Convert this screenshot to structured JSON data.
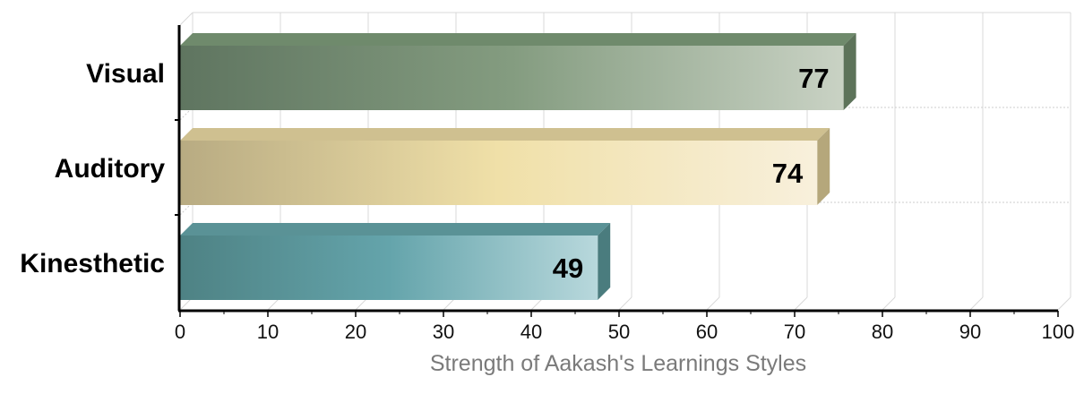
{
  "chart_data": {
    "type": "bar",
    "orientation": "horizontal",
    "categories": [
      "Visual",
      "Auditory",
      "Kinesthetic"
    ],
    "values": [
      77,
      74,
      49
    ],
    "value_labels": [
      "77",
      "74",
      "49"
    ],
    "xlabel": "Strength of Aakash's Learnings Styles",
    "ylabel": "",
    "xlim": [
      0,
      100
    ],
    "x_ticks": [
      "0",
      "10",
      "20",
      "30",
      "40",
      "50",
      "60",
      "70",
      "80",
      "90",
      "100"
    ],
    "grid": true,
    "legend": "none",
    "colors": [
      {
        "dark": "#5f7560",
        "mid": "#849c80",
        "light": "#c9d2c4",
        "top": "#6f8a6c",
        "side": "#5d735a"
      },
      {
        "dark": "#b8ab82",
        "mid": "#f0e0a8",
        "light": "#f8f0dc",
        "top": "#cfc090",
        "side": "#b5a77b"
      },
      {
        "dark": "#4e8284",
        "mid": "#64a4ab",
        "light": "#b8d8dc",
        "top": "#5a9296",
        "side": "#4a7c7e"
      }
    ]
  }
}
